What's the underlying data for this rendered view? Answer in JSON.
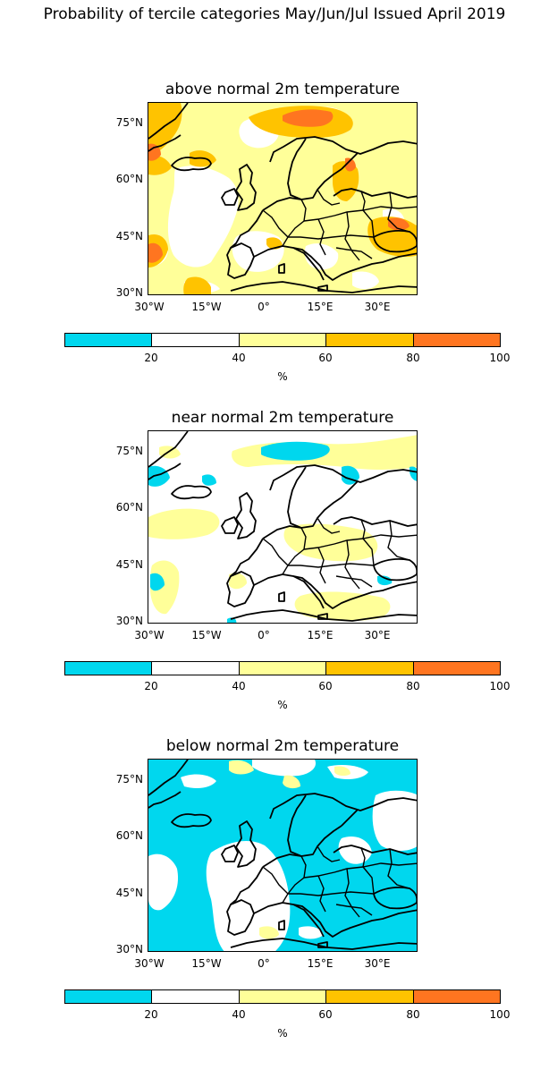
{
  "suptitle": "Probability of tercile categories May/Jun/Jul Issued April 2019",
  "palette": [
    "#00d7ee",
    "#ffffff",
    "#ffff99",
    "#ffc300",
    "#ff7520"
  ],
  "colorbar": {
    "ticks": [
      "20",
      "40",
      "60",
      "80",
      "100"
    ],
    "unit": "%"
  },
  "lat_labels": [
    "75°N",
    "60°N",
    "45°N",
    "30°N"
  ],
  "lon_labels": [
    "30°W",
    "15°W",
    "0°",
    "15°E",
    "30°E"
  ],
  "panels": [
    {
      "title": "above normal 2m temperature",
      "dominant_category": "40-60 %",
      "background_color": "#ffff99"
    },
    {
      "title": "near normal 2m temperature",
      "dominant_category": "20-40 %",
      "background_color": "#ffffff"
    },
    {
      "title": "below normal 2m temperature",
      "dominant_category": "0-20 %",
      "background_color": "#00d7ee"
    }
  ]
}
